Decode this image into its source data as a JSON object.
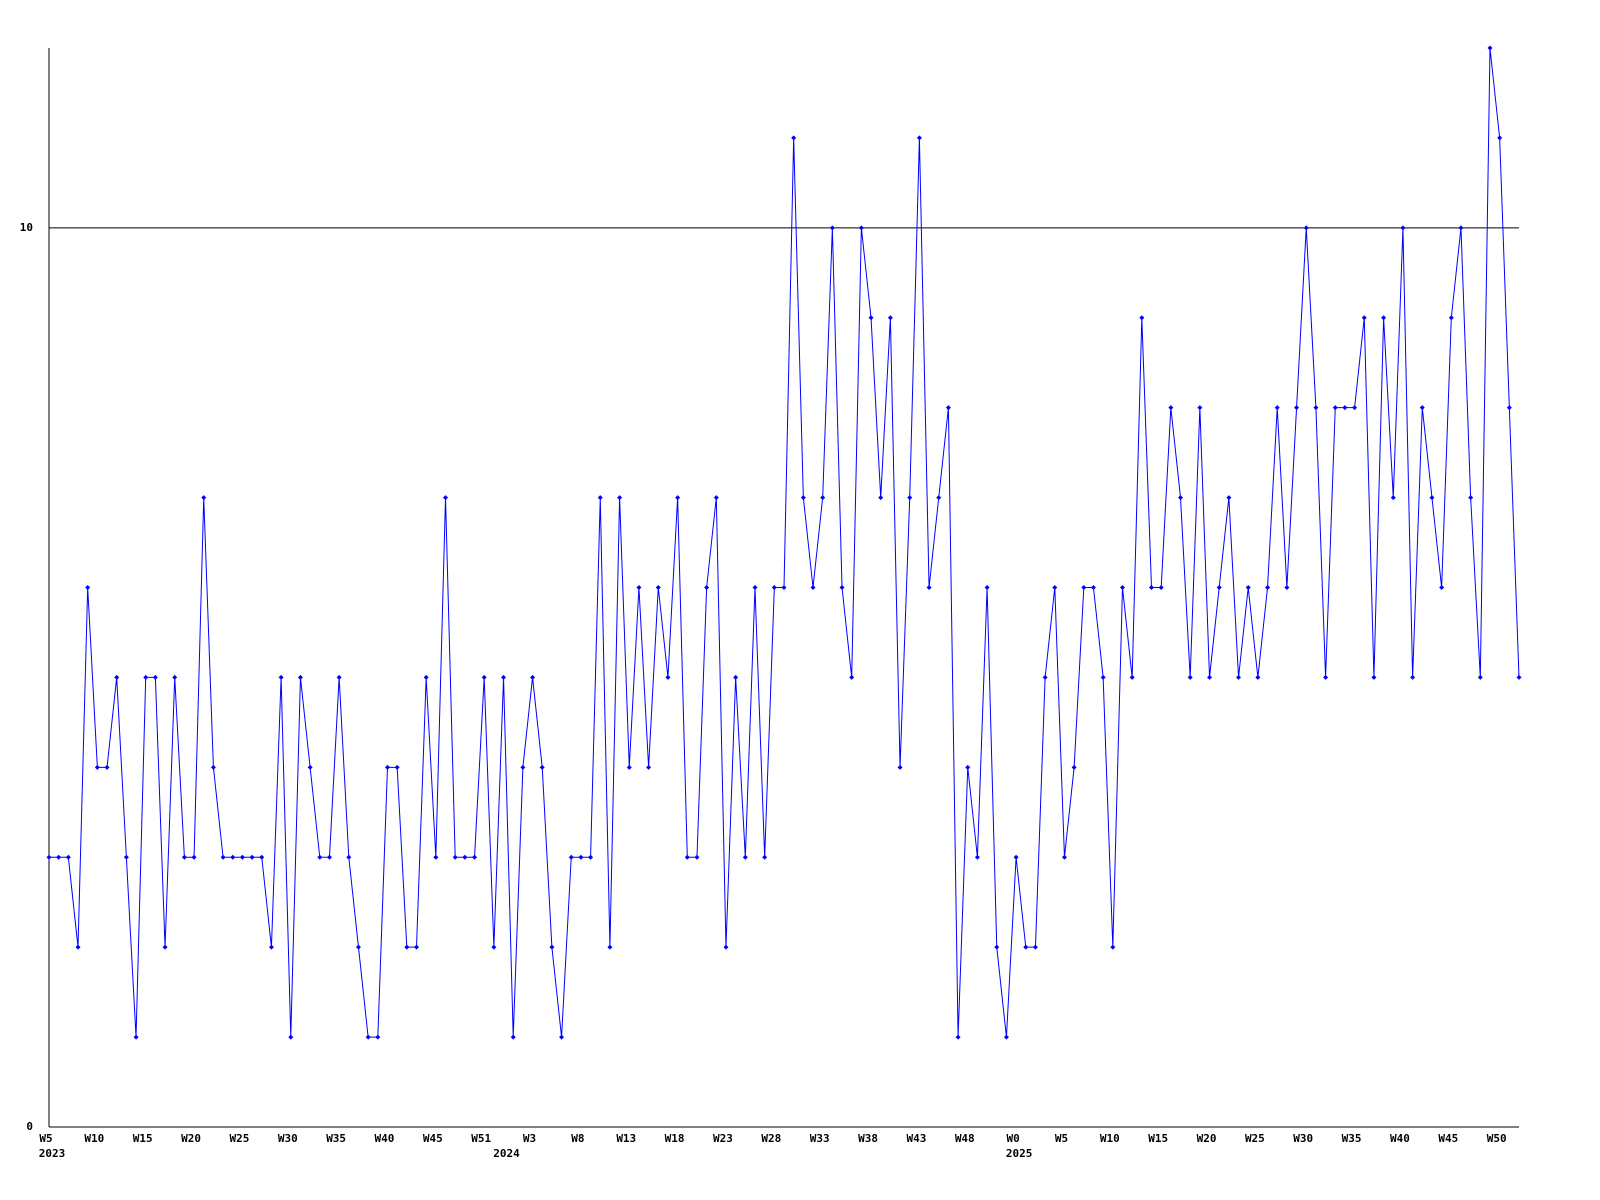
{
  "chart_data": {
    "type": "line",
    "color": "#0000ff",
    "categories": [
      "W5",
      null,
      null,
      null,
      null,
      "W10",
      null,
      null,
      null,
      null,
      "W15",
      null,
      null,
      null,
      null,
      "W20",
      null,
      null,
      null,
      null,
      "W25",
      null,
      null,
      null,
      null,
      "W30",
      null,
      null,
      null,
      null,
      "W35",
      null,
      null,
      null,
      null,
      "W40",
      null,
      null,
      null,
      null,
      "W45",
      null,
      null,
      null,
      null,
      "W51",
      null,
      null,
      null,
      null,
      "W3",
      null,
      null,
      null,
      null,
      "W8",
      null,
      null,
      null,
      null,
      "W13",
      null,
      null,
      null,
      null,
      "W18",
      null,
      null,
      null,
      null,
      "W23",
      null,
      null,
      null,
      null,
      "W28",
      null,
      null,
      null,
      null,
      "W33",
      null,
      null,
      null,
      null,
      "W38",
      null,
      null,
      null,
      null,
      "W43",
      null,
      null,
      null,
      null,
      "W48",
      null,
      null,
      null,
      null,
      "W0",
      null,
      null,
      null,
      null,
      "W5",
      null,
      null,
      null,
      null,
      "W10",
      null,
      null,
      null,
      null,
      "W15",
      null,
      null,
      null,
      null,
      "W20",
      null,
      null,
      null,
      null,
      "W25",
      null,
      null,
      null,
      null,
      "W30",
      null,
      null,
      null,
      null,
      "W35",
      null,
      null,
      null,
      null,
      "W40",
      null,
      null,
      null,
      null,
      "W45",
      null,
      null,
      null,
      null,
      "W50",
      null,
      null
    ],
    "sublabels": [
      "2023",
      null,
      null,
      null,
      null,
      null,
      null,
      null,
      null,
      null,
      null,
      null,
      null,
      null,
      null,
      null,
      null,
      null,
      null,
      null,
      null,
      null,
      null,
      null,
      null,
      null,
      null,
      null,
      null,
      null,
      null,
      null,
      null,
      null,
      null,
      null,
      null,
      null,
      null,
      null,
      null,
      null,
      null,
      null,
      null,
      null,
      null,
      "2024",
      null,
      null,
      null,
      null,
      null,
      null,
      null,
      null,
      null,
      null,
      null,
      null,
      null,
      null,
      null,
      null,
      null,
      null,
      null,
      null,
      null,
      null,
      null,
      null,
      null,
      null,
      null,
      null,
      null,
      null,
      null,
      null,
      null,
      null,
      null,
      null,
      null,
      null,
      null,
      null,
      null,
      null,
      null,
      null,
      null,
      null,
      null,
      null,
      null,
      null,
      null,
      null,
      "2025",
      null,
      null,
      null,
      null,
      null,
      null,
      null,
      null,
      null,
      null,
      null,
      null,
      null,
      null,
      null,
      null,
      null,
      null,
      null,
      null,
      null,
      null,
      null,
      null,
      null,
      null,
      null,
      null,
      null,
      null,
      null,
      null,
      null,
      null,
      null,
      null,
      null,
      null,
      null,
      null,
      null,
      null,
      null,
      null,
      null,
      null,
      null,
      null,
      null,
      null,
      null,
      null
    ],
    "values": [
      3,
      3,
      3,
      2,
      6,
      4,
      4,
      5,
      3,
      1,
      5,
      5,
      2,
      5,
      3,
      3,
      7,
      4,
      3,
      3,
      3,
      3,
      3,
      2,
      5,
      1,
      5,
      4,
      3,
      3,
      5,
      3,
      2,
      1,
      1,
      4,
      4,
      2,
      2,
      5,
      3,
      7,
      3,
      3,
      3,
      5,
      2,
      5,
      1,
      4,
      5,
      4,
      2,
      1,
      3,
      3,
      3,
      7,
      2,
      7,
      4,
      6,
      4,
      6,
      5,
      7,
      3,
      3,
      6,
      7,
      2,
      5,
      3,
      6,
      3,
      6,
      6,
      11,
      7,
      6,
      7,
      10,
      6,
      5,
      10,
      9,
      7,
      9,
      4,
      7,
      11,
      6,
      7,
      8,
      1,
      4,
      3,
      6,
      2,
      1,
      3,
      2,
      2,
      5,
      6,
      3,
      4,
      6,
      6,
      5,
      2,
      6,
      5,
      9,
      6,
      6,
      8,
      7,
      5,
      8,
      5,
      6,
      7,
      5,
      6,
      5,
      6,
      8,
      6,
      8,
      10,
      8,
      5,
      8,
      8,
      8,
      9,
      5,
      9,
      7,
      10,
      5,
      8,
      7,
      6,
      9,
      10,
      7,
      5,
      12,
      11,
      8,
      5
    ],
    "ylim": [
      0,
      12
    ],
    "yticks": [
      0,
      10
    ],
    "grid": true
  }
}
